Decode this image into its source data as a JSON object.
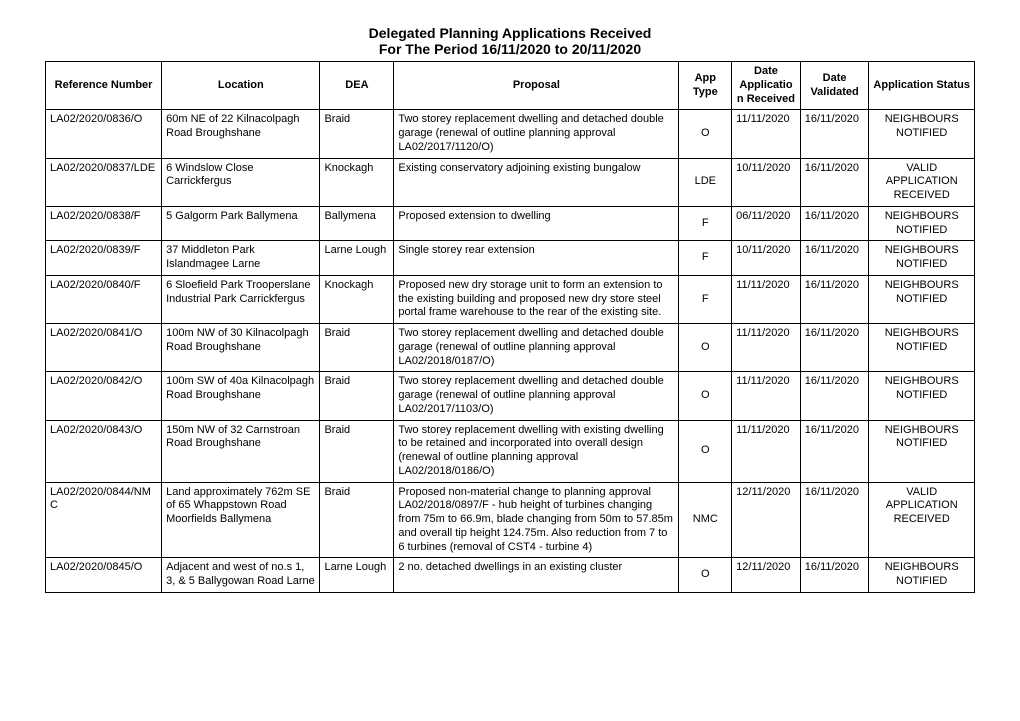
{
  "title_line1": "Delegated Planning Applications Received",
  "title_line2": "For The Period 16/11/2020 to 20/11/2020",
  "columns": [
    "Reference Number",
    "Location",
    "DEA",
    "Proposal",
    "App Type",
    "Date Application Received",
    "Date Validated",
    "Application Status"
  ],
  "rows": [
    {
      "ref": "LA02/2020/0836/O",
      "location": "60m NE of 22 Kilnacolpagh Road Broughshane",
      "dea": "Braid",
      "proposal": "Two storey replacement dwelling and detached double garage (renewal of outline planning approval LA02/2017/1120/O)",
      "app_type": "O",
      "date_received": "11/11/2020",
      "date_validated": "16/11/2020",
      "status": "NEIGHBOURS NOTIFIED"
    },
    {
      "ref": "LA02/2020/0837/LDE",
      "location": "6 Windslow Close Carrickfergus",
      "dea": "Knockagh",
      "proposal": "Existing conservatory adjoining existing bungalow",
      "app_type": "LDE",
      "date_received": "10/11/2020",
      "date_validated": "16/11/2020",
      "status": "VALID APPLICATION RECEIVED"
    },
    {
      "ref": "LA02/2020/0838/F",
      "location": "5 Galgorm Park Ballymena",
      "dea": "Ballymena",
      "proposal": "Proposed extension to dwelling",
      "app_type": "F",
      "date_received": "06/11/2020",
      "date_validated": "16/11/2020",
      "status": "NEIGHBOURS NOTIFIED"
    },
    {
      "ref": "LA02/2020/0839/F",
      "location": "37 Middleton Park Islandmagee Larne",
      "dea": "Larne Lough",
      "proposal": "Single storey rear extension",
      "app_type": "F",
      "date_received": "10/11/2020",
      "date_validated": "16/11/2020",
      "status": "NEIGHBOURS NOTIFIED"
    },
    {
      "ref": "LA02/2020/0840/F",
      "location": "6 Sloefield Park Trooperslane Industrial Park Carrickfergus",
      "dea": "Knockagh",
      "proposal": "Proposed new dry storage unit to form an extension to the existing building and proposed new dry store steel portal frame warehouse to the rear of the existing site.",
      "app_type": "F",
      "date_received": "11/11/2020",
      "date_validated": "16/11/2020",
      "status": "NEIGHBOURS NOTIFIED"
    },
    {
      "ref": "LA02/2020/0841/O",
      "location": "100m NW of 30 Kilnacolpagh Road Broughshane",
      "dea": "Braid",
      "proposal": "Two storey replacement dwelling and detached double garage (renewal of outline planning approval LA02/2018/0187/O)",
      "app_type": "O",
      "date_received": "11/11/2020",
      "date_validated": "16/11/2020",
      "status": "NEIGHBOURS NOTIFIED"
    },
    {
      "ref": "LA02/2020/0842/O",
      "location": "100m SW of 40a Kilnacolpagh Road Broughshane",
      "dea": "Braid",
      "proposal": "Two storey replacement dwelling and detached double garage (renewal of outline planning approval LA02/2017/1103/O)",
      "app_type": "O",
      "date_received": "11/11/2020",
      "date_validated": "16/11/2020",
      "status": "NEIGHBOURS NOTIFIED"
    },
    {
      "ref": "LA02/2020/0843/O",
      "location": "150m NW of 32 Carnstroan Road Broughshane",
      "dea": "Braid",
      "proposal": "Two storey replacement dwelling with existing dwelling to be retained and incorporated into overall design (renewal of outline planning approval LA02/2018/0186/O)",
      "app_type": "O",
      "date_received": "11/11/2020",
      "date_validated": "16/11/2020",
      "status": "NEIGHBOURS NOTIFIED"
    },
    {
      "ref": "LA02/2020/0844/NMC",
      "location": "Land approximately 762m SE of 65 Whappstown Road Moorfields Ballymena",
      "dea": "Braid",
      "proposal": "Proposed non-material change to planning approval LA02/2018/0897/F - hub height of turbines changing from 75m to 66.9m, blade changing from 50m to 57.85m and overall tip height 124.75m. Also reduction from 7 to 6 turbines (removal of CST4 - turbine 4)",
      "app_type": "NMC",
      "date_received": "12/11/2020",
      "date_validated": "16/11/2020",
      "status": "VALID APPLICATION RECEIVED"
    },
    {
      "ref": "LA02/2020/0845/O",
      "location": "Adjacent and west of no.s 1, 3, & 5 Ballygowan Road Larne",
      "dea": "Larne Lough",
      "proposal": "2 no. detached dwellings in an existing cluster",
      "app_type": "O",
      "date_received": "12/11/2020",
      "date_validated": "16/11/2020",
      "status": "NEIGHBOURS NOTIFIED"
    }
  ]
}
